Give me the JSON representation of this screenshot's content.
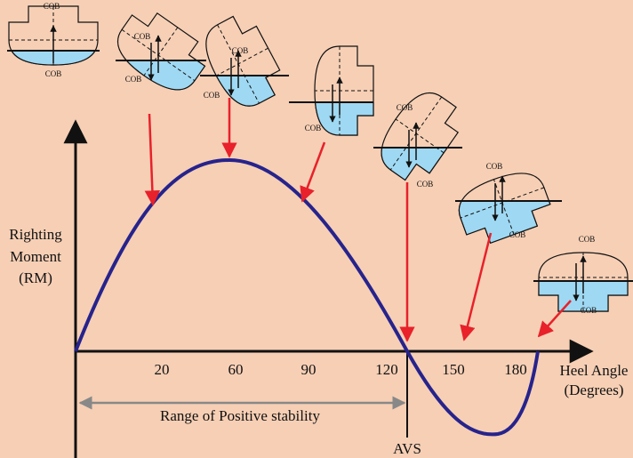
{
  "axis": {
    "y_label": [
      "Righting",
      "Moment",
      "(RM)"
    ],
    "x_label": [
      "Heel Angle",
      "(Degrees)"
    ]
  },
  "ticks": [
    "20",
    "60",
    "90",
    "120",
    "150",
    "180"
  ],
  "range_label": "Range of Positive stability",
  "avs_label": "AVS",
  "ships": [
    {
      "labels": [
        "COB",
        "COB"
      ]
    },
    {
      "labels": [
        "COB",
        "COB"
      ]
    },
    {
      "labels": [
        "COB",
        "COB"
      ]
    },
    {
      "labels": [
        "COB"
      ]
    },
    {
      "labels": [
        "COB",
        "COB"
      ]
    },
    {
      "labels": [
        "COB",
        "COB"
      ]
    },
    {
      "labels": [
        "COB",
        "COB"
      ]
    }
  ]
}
